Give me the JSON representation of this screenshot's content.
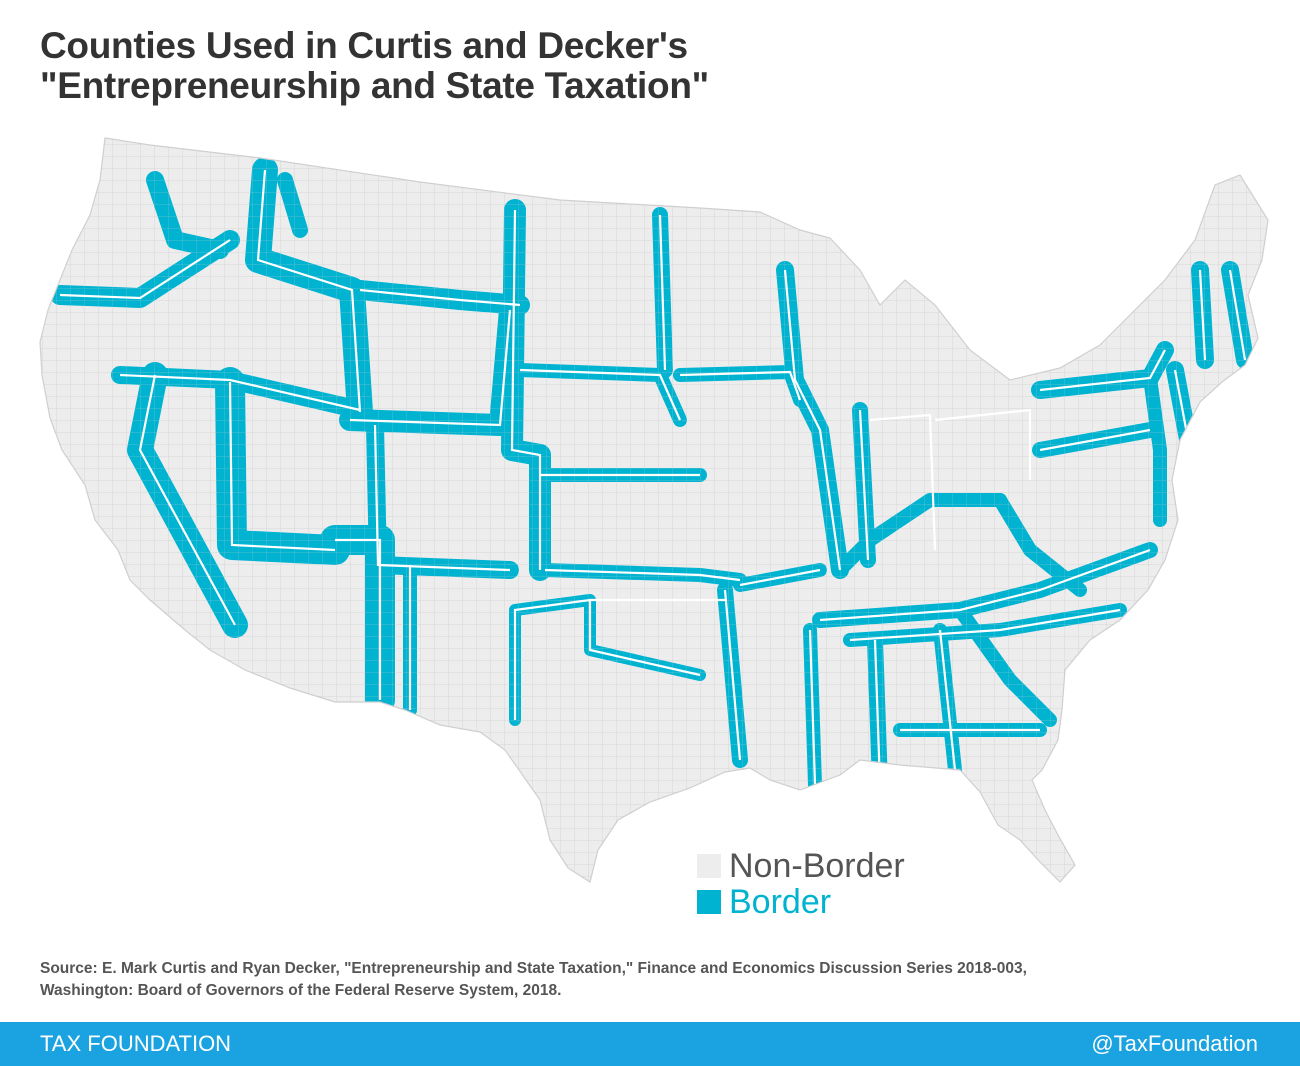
{
  "title": {
    "line1": "Counties Used in Curtis and Decker's",
    "line2": "\"Entrepreneurship and State Taxation\""
  },
  "legend": {
    "non_border": "Non-Border",
    "border": "Border"
  },
  "colors": {
    "non_border": "#ededed",
    "border": "#00b3d1",
    "state_lines": "#ffffff",
    "county_lines": "#c8c8c8",
    "footer": "#1aa3e0"
  },
  "source": {
    "line1": "Source: E. Mark Curtis and Ryan Decker, \"Entrepreneurship and State Taxation,\" Finance and Economics Discussion Series 2018-003,",
    "line2": "Washington: Board of Governors of the Federal Reserve System, 2018."
  },
  "footer": {
    "brand": "TAX FOUNDATION",
    "handle": "@TaxFoundation"
  }
}
